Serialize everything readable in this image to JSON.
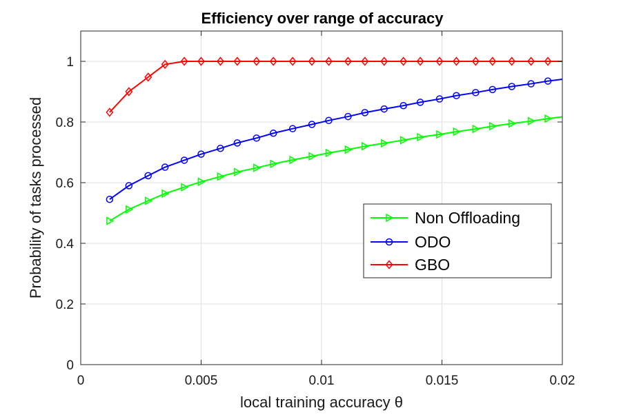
{
  "chart_data": {
    "type": "line",
    "title": "Efficiency over range of accuracy",
    "xlabel": "local training accuracy θ",
    "ylabel": "Probability of tasks processed",
    "xlim": [
      0,
      0.02
    ],
    "ylim": [
      0,
      1.1
    ],
    "xticks": [
      0,
      0.005,
      0.01,
      0.015,
      0.02
    ],
    "xtick_labels": [
      "0",
      "0.005",
      "0.01",
      "0.015",
      "0.02"
    ],
    "yticks": [
      0,
      0.2,
      0.4,
      0.6,
      0.8,
      1
    ],
    "ytick_labels": [
      "0",
      "0.2",
      "0.4",
      "0.6",
      "0.8",
      "1"
    ],
    "grid": true,
    "legend_position": "center-right",
    "series": [
      {
        "name": "Non Offloading",
        "color": "#00ff00",
        "marker": "triangle-right",
        "x": [
          0.0012,
          0.002,
          0.0028,
          0.0035,
          0.0043,
          0.005,
          0.0058,
          0.0065,
          0.0073,
          0.008,
          0.0088,
          0.0096,
          0.0103,
          0.0111,
          0.0118,
          0.0126,
          0.0134,
          0.0141,
          0.0149,
          0.0156,
          0.0164,
          0.0171,
          0.0179,
          0.0187,
          0.0194,
          0.02
        ],
        "y": [
          0.474,
          0.512,
          0.54,
          0.564,
          0.585,
          0.603,
          0.62,
          0.635,
          0.649,
          0.662,
          0.675,
          0.687,
          0.698,
          0.709,
          0.72,
          0.73,
          0.74,
          0.75,
          0.759,
          0.768,
          0.777,
          0.786,
          0.795,
          0.803,
          0.811,
          0.817
        ]
      },
      {
        "name": "ODO",
        "color": "#0000ff",
        "marker": "circle",
        "x": [
          0.0012,
          0.002,
          0.0028,
          0.0035,
          0.0043,
          0.005,
          0.0058,
          0.0065,
          0.0073,
          0.008,
          0.0088,
          0.0096,
          0.0103,
          0.0111,
          0.0118,
          0.0126,
          0.0134,
          0.0141,
          0.0149,
          0.0156,
          0.0164,
          0.0171,
          0.0179,
          0.0187,
          0.0194,
          0.02
        ],
        "y": [
          0.545,
          0.59,
          0.623,
          0.651,
          0.674,
          0.694,
          0.713,
          0.731,
          0.747,
          0.763,
          0.778,
          0.792,
          0.805,
          0.818,
          0.831,
          0.843,
          0.854,
          0.865,
          0.876,
          0.887,
          0.897,
          0.907,
          0.917,
          0.926,
          0.935,
          0.941
        ]
      },
      {
        "name": "GBO",
        "color": "#ff0000",
        "marker": "diamond",
        "x": [
          0.0012,
          0.002,
          0.0028,
          0.0035,
          0.0043,
          0.005,
          0.0058,
          0.0065,
          0.0073,
          0.008,
          0.0088,
          0.0096,
          0.0103,
          0.0111,
          0.0118,
          0.0126,
          0.0134,
          0.0141,
          0.0149,
          0.0156,
          0.0164,
          0.0171,
          0.0179,
          0.0187,
          0.0194,
          0.02
        ],
        "y": [
          0.832,
          0.9,
          0.948,
          0.99,
          1,
          1,
          1,
          1,
          1,
          1,
          1,
          1,
          1,
          1,
          1,
          1,
          1,
          1,
          1,
          1,
          1,
          1,
          1,
          1,
          1,
          1
        ]
      }
    ]
  }
}
